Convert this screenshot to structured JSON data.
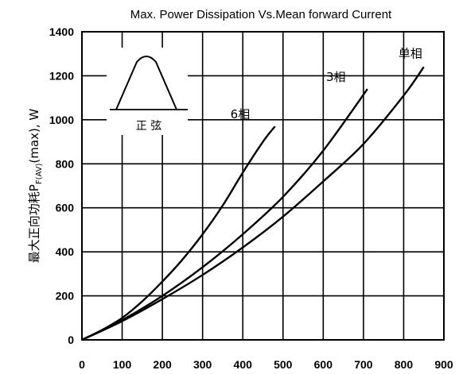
{
  "chart_data": {
    "type": "line",
    "title": "Max. Power Dissipation Vs.Mean forward Current",
    "ylabel_prefix": "最大正向功耗P",
    "ylabel_sub": "F(AV)",
    "ylabel_suffix": "(max), W",
    "xlabel": "",
    "xlim": [
      0,
      900
    ],
    "ylim": [
      0,
      1400
    ],
    "xticks": [
      0,
      100,
      200,
      300,
      400,
      500,
      600,
      700,
      800,
      900
    ],
    "yticks": [
      0,
      200,
      400,
      600,
      800,
      1000,
      1200,
      1400
    ],
    "grid": true,
    "inset_label": "正 弦",
    "series": [
      {
        "name": "6相",
        "x": [
          0,
          50,
          100,
          150,
          200,
          250,
          300,
          350,
          400,
          450,
          480
        ],
        "y": [
          0,
          45,
          100,
          175,
          265,
          365,
          480,
          610,
          760,
          900,
          970
        ]
      },
      {
        "name": "3相",
        "x": [
          0,
          100,
          200,
          300,
          400,
          500,
          600,
          710
        ],
        "y": [
          0,
          90,
          200,
          330,
          480,
          650,
          860,
          1140
        ]
      },
      {
        "name": "单相",
        "x": [
          0,
          100,
          200,
          300,
          400,
          500,
          600,
          700,
          800,
          850
        ],
        "y": [
          0,
          85,
          185,
          295,
          420,
          560,
          720,
          890,
          1110,
          1240
        ]
      }
    ]
  }
}
